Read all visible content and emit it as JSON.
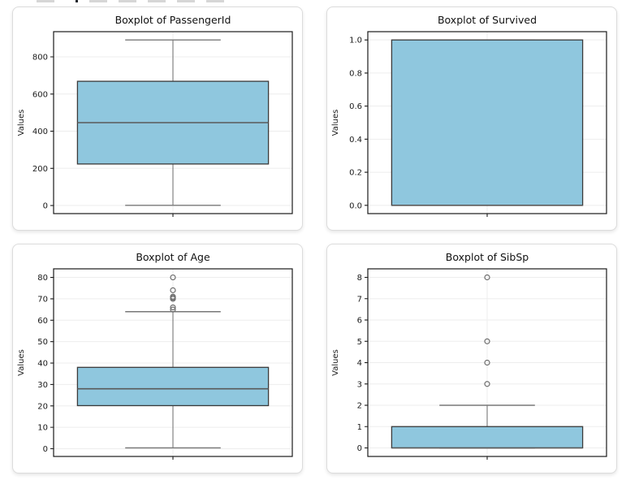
{
  "page": {
    "background": "#ffffff",
    "card_background": "#ffffff",
    "card_border": "#dcdcdc"
  },
  "colors": {
    "box_fill": "#8FC7DE",
    "box_edge": "#3a3a3a",
    "median": "#5a5a5a",
    "whisker": "#787878",
    "outlier": "#6e6e6e",
    "grid": "#ededed",
    "axis": "#1a1a1a",
    "tick_label": "#1a1a1a",
    "title": "#111111"
  },
  "chart_data": [
    {
      "type": "box",
      "title": "Boxplot of PassengerId",
      "ylabel": "Values",
      "yticks": [
        0,
        200,
        400,
        600,
        800
      ],
      "tick_format": "int",
      "ylim": [
        -43.5,
        935.5
      ],
      "grid": true,
      "legend": "none",
      "box": {
        "whisker_low": 1,
        "q1": 223.5,
        "median": 446,
        "q3": 668.5,
        "whisker_high": 891,
        "outliers": []
      }
    },
    {
      "type": "box",
      "title": "Boxplot of Survived",
      "ylabel": "Values",
      "yticks": [
        0.0,
        0.2,
        0.4,
        0.6,
        0.8,
        1.0
      ],
      "tick_format": "f1",
      "ylim": [
        -0.05,
        1.05
      ],
      "grid": true,
      "legend": "none",
      "box": {
        "whisker_low": 0,
        "q1": 0,
        "median": 0,
        "q3": 1,
        "whisker_high": 1,
        "outliers": []
      }
    },
    {
      "type": "box",
      "title": "Boxplot of Age",
      "ylabel": "Values",
      "yticks": [
        0,
        10,
        20,
        30,
        40,
        50,
        60,
        70,
        80
      ],
      "tick_format": "int",
      "ylim": [
        -3.6,
        84.0
      ],
      "grid": true,
      "legend": "none",
      "box": {
        "whisker_low": 0.42,
        "q1": 20.125,
        "median": 28,
        "q3": 38,
        "whisker_high": 64,
        "outliers": [
          65,
          66,
          70,
          70.5,
          71,
          74,
          80
        ]
      }
    },
    {
      "type": "box",
      "title": "Boxplot of SibSp",
      "ylabel": "Values",
      "yticks": [
        0,
        1,
        2,
        3,
        4,
        5,
        6,
        7,
        8
      ],
      "tick_format": "int",
      "ylim": [
        -0.4,
        8.4
      ],
      "grid": true,
      "legend": "none",
      "box": {
        "whisker_low": 0,
        "q1": 0,
        "median": 0,
        "q3": 1,
        "whisker_high": 2,
        "outliers": [
          3,
          4,
          5,
          8
        ]
      }
    }
  ]
}
